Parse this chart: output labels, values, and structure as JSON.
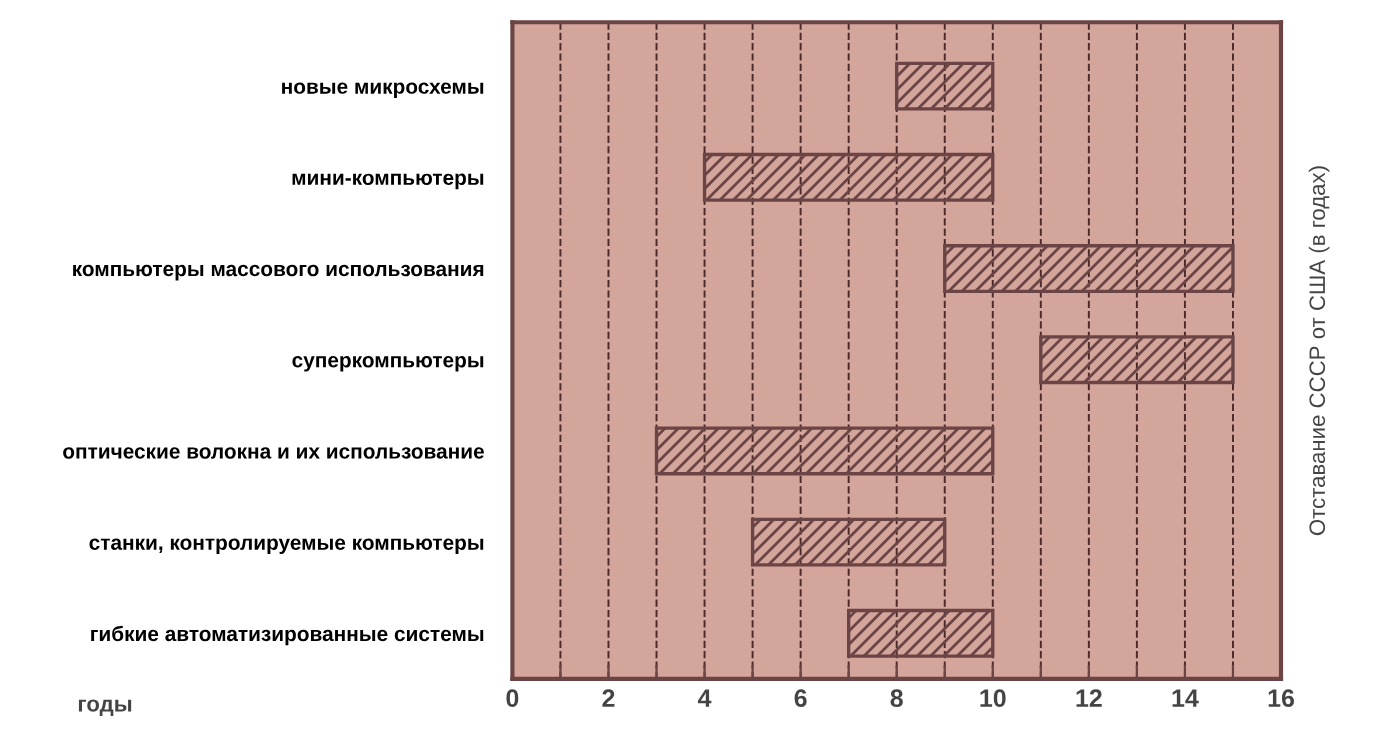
{
  "chart_data": {
    "type": "bar",
    "orientation": "horizontal",
    "categories": [
      "новые микросхемы",
      "мини-компьютеры",
      "компьютеры массового использования",
      "суперкомпьютеры",
      "оптические волокна и их использование",
      "станки, контролируемые компьютеры",
      "гибкие автоматизированные системы"
    ],
    "base": [
      8,
      4,
      9,
      11,
      3,
      5,
      7
    ],
    "values": [
      2,
      6,
      6,
      4,
      7,
      4,
      3
    ],
    "color": "#6b4545",
    "xlabel": "годы",
    "ylabel": "Отставание СССР от США (в годах)",
    "xlim": [
      0,
      16
    ],
    "xticks": [
      0,
      {
        "value": 1,
        "label": null
      },
      2,
      {
        "value": 3,
        "label": null
      },
      4,
      {
        "value": 5,
        "label": null
      },
      6,
      {
        "value": 7,
        "label": null
      },
      8,
      {
        "value": 9,
        "label": null
      },
      10,
      {
        "value": 11,
        "label": null
      },
      12,
      {
        "value": 13,
        "label": null
      },
      14,
      {
        "value": 15,
        "label": null
      },
      16
    ],
    "grid": "x",
    "line_style": "dashed"
  }
}
